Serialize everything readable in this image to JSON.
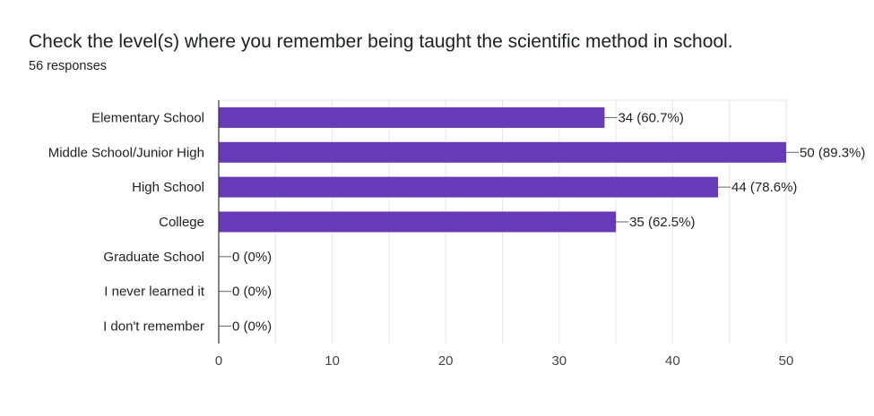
{
  "title": "Check the level(s) where you remember being taught the scientific method in school.",
  "subtitle": "56 responses",
  "chart_data": {
    "type": "bar",
    "orientation": "horizontal",
    "categories": [
      "Elementary School",
      "Middle School/Junior High",
      "High School",
      "College",
      "Graduate School",
      "I never learned it",
      "I don't remember"
    ],
    "values": [
      34,
      50,
      44,
      35,
      0,
      0,
      0
    ],
    "data_labels": [
      "34 (60.7%)",
      "50 (89.3%)",
      "44 (78.6%)",
      "35 (62.5%)",
      "0 (0%)",
      "0 (0%)",
      "0 (0%)"
    ],
    "xlim": [
      0,
      50
    ],
    "xticks": [
      0,
      10,
      20,
      30,
      40,
      50
    ],
    "xtick_labels": [
      "0",
      "10",
      "20",
      "30",
      "40",
      "50"
    ],
    "grid": true,
    "bar_color": "#673ab7",
    "grid_color": "#e6e6e6",
    "axis_color": "#333333"
  }
}
